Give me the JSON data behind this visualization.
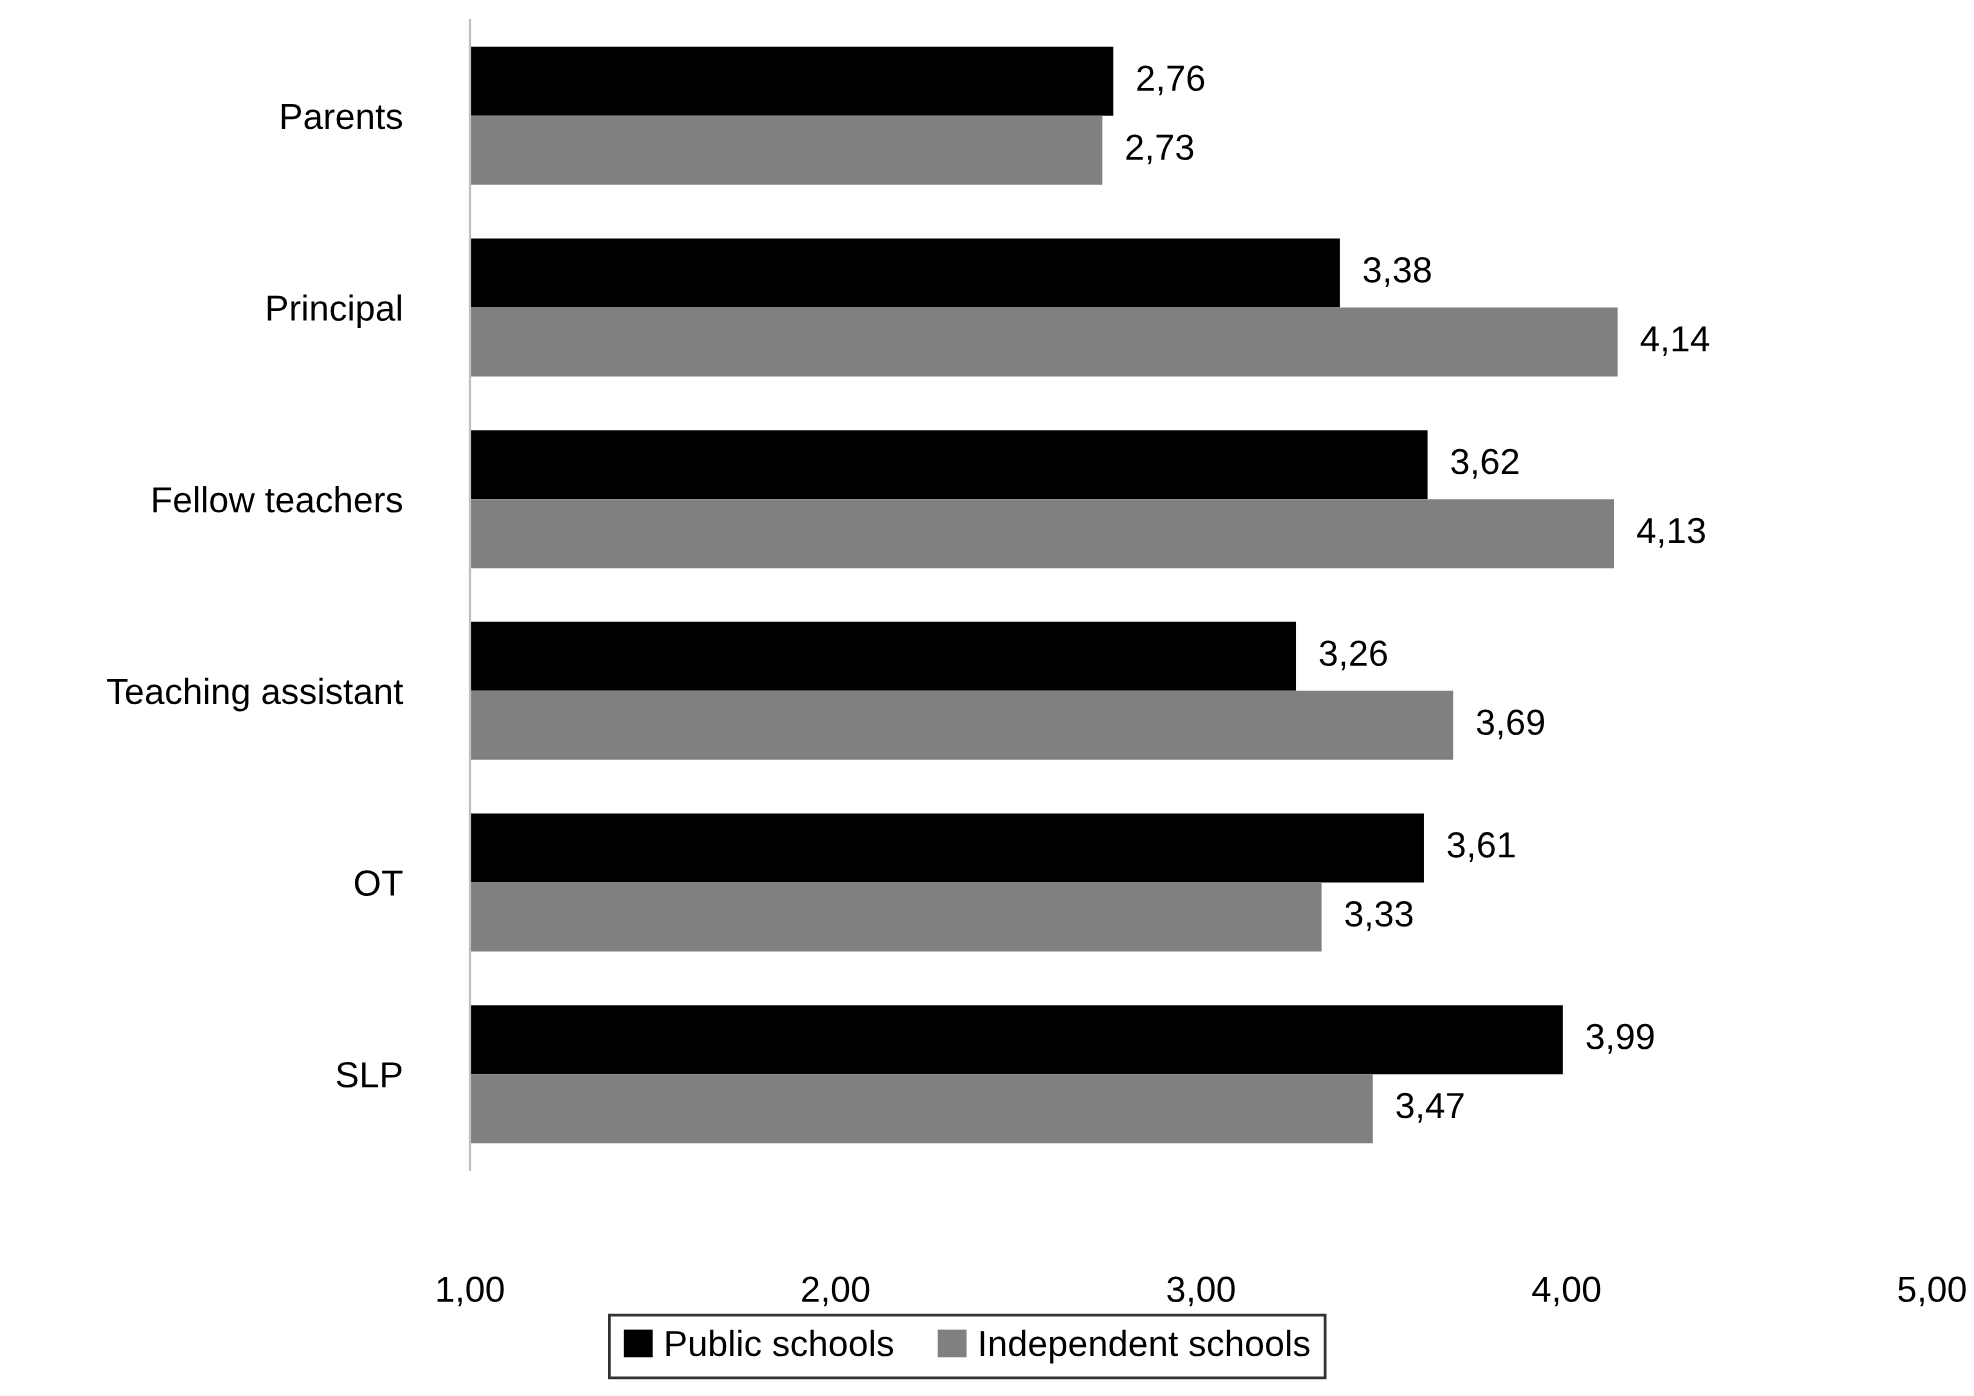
{
  "chart_data": {
    "type": "bar",
    "orientation": "horizontal",
    "categories": [
      "Parents",
      "Principal",
      "Fellow teachers",
      "Teaching assistant",
      "OT",
      "SLP"
    ],
    "series": [
      {
        "name": "Public schools",
        "color": "#000000",
        "values": [
          2.76,
          3.38,
          3.62,
          3.26,
          3.61,
          3.99
        ],
        "value_labels": [
          "2,76",
          "3,38",
          "3,62",
          "3,26",
          "3,61",
          "3,99"
        ]
      },
      {
        "name": "Independent schools",
        "color": "#808080",
        "values": [
          2.73,
          4.14,
          4.13,
          3.69,
          3.33,
          3.47
        ],
        "value_labels": [
          "2,73",
          "4,14",
          "4,13",
          "3,69",
          "3,33",
          "3,47"
        ]
      }
    ],
    "xlim": [
      1,
      5
    ],
    "xticks": [
      {
        "value": 1,
        "label": "1,00"
      },
      {
        "value": 2,
        "label": "2,00"
      },
      {
        "value": 3,
        "label": "3,00"
      },
      {
        "value": 4,
        "label": "4,00"
      },
      {
        "value": 5,
        "label": "5,00"
      }
    ],
    "grid": false,
    "legend": "bottom"
  }
}
